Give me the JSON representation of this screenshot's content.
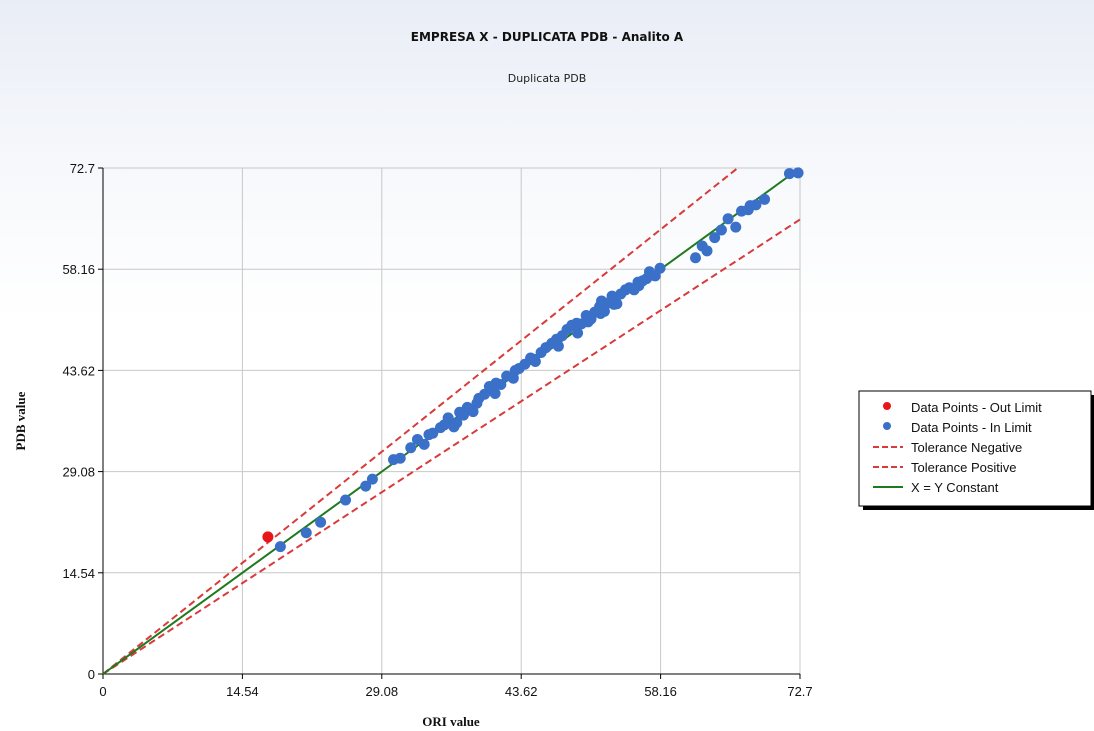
{
  "chart_data": {
    "type": "scatter",
    "title": "EMPRESA X - DUPLICATA PDB - Analito A",
    "subtitle": "Duplicata PDB",
    "xlabel": "ORI value",
    "ylabel": "PDB value",
    "xlim": [
      0,
      72.7
    ],
    "ylim": [
      0,
      72.7
    ],
    "x_ticks": [
      "0",
      "14.54",
      "29.08",
      "43.62",
      "58.16",
      "72.7"
    ],
    "y_ticks": [
      "0",
      "14.54",
      "29.08",
      "43.62",
      "58.16",
      "72.7"
    ],
    "grid": true,
    "legend_position": "right",
    "colors": {
      "out_limit": "#e8161b",
      "in_limit": "#3a70c8",
      "tolerance": "#d93a3a",
      "identity": "#1f7a1f"
    },
    "series": [
      {
        "name": "Data Points - Out Limit",
        "kind": "scatter",
        "color": "#e8161b",
        "points": [
          [
            17.2,
            19.7
          ]
        ]
      },
      {
        "name": "Data Points - In Limit",
        "kind": "scatter",
        "color": "#3a70c8",
        "points": [
          [
            18.5,
            18.3
          ],
          [
            21.2,
            20.3
          ],
          [
            22.7,
            21.8
          ],
          [
            25.3,
            25.0
          ],
          [
            27.4,
            27.0
          ],
          [
            28.1,
            28.0
          ],
          [
            30.3,
            30.8
          ],
          [
            31.0,
            31.0
          ],
          [
            32.1,
            32.5
          ],
          [
            32.8,
            33.7
          ],
          [
            33.5,
            33.0
          ],
          [
            34.4,
            34.6
          ],
          [
            35.2,
            35.4
          ],
          [
            36.0,
            36.8
          ],
          [
            36.6,
            35.5
          ],
          [
            37.2,
            37.6
          ],
          [
            38.0,
            38.3
          ],
          [
            38.6,
            37.7
          ],
          [
            39.2,
            39.6
          ],
          [
            39.8,
            40.2
          ],
          [
            40.3,
            41.3
          ],
          [
            40.9,
            40.3
          ],
          [
            41.5,
            41.6
          ],
          [
            42.1,
            42.8
          ],
          [
            42.8,
            42.5
          ],
          [
            43.4,
            43.9
          ],
          [
            44.0,
            44.5
          ],
          [
            44.6,
            45.4
          ],
          [
            45.1,
            44.9
          ],
          [
            45.7,
            46.2
          ],
          [
            46.2,
            46.9
          ],
          [
            46.8,
            47.5
          ],
          [
            47.3,
            48.1
          ],
          [
            47.9,
            48.6
          ],
          [
            48.4,
            49.5
          ],
          [
            48.9,
            50.1
          ],
          [
            49.5,
            49.0
          ],
          [
            49.9,
            50.3
          ],
          [
            50.4,
            51.5
          ],
          [
            50.9,
            51.0
          ],
          [
            51.3,
            52.0
          ],
          [
            51.8,
            52.8
          ],
          [
            52.3,
            52.1
          ],
          [
            52.7,
            53.3
          ],
          [
            53.1,
            54.3
          ],
          [
            53.6,
            53.2
          ],
          [
            54.0,
            54.6
          ],
          [
            54.5,
            55.2
          ],
          [
            54.9,
            55.5
          ],
          [
            55.4,
            55.2
          ],
          [
            55.8,
            56.3
          ],
          [
            56.3,
            56.5
          ],
          [
            56.7,
            56.8
          ],
          [
            57.2,
            57.3
          ],
          [
            57.6,
            57.2
          ],
          [
            58.1,
            58.3
          ],
          [
            61.8,
            59.8
          ],
          [
            62.5,
            61.5
          ],
          [
            63.0,
            60.8
          ],
          [
            63.8,
            62.7
          ],
          [
            64.5,
            63.8
          ],
          [
            65.2,
            65.4
          ],
          [
            66.0,
            64.2
          ],
          [
            66.6,
            66.5
          ],
          [
            67.3,
            66.7
          ],
          [
            68.1,
            67.4
          ],
          [
            69.0,
            68.2
          ],
          [
            67.5,
            67.3
          ],
          [
            71.6,
            71.9
          ],
          [
            72.5,
            72.0
          ],
          [
            49.4,
            50.4
          ],
          [
            50.6,
            50.6
          ],
          [
            51.9,
            51.8
          ],
          [
            53.3,
            53.1
          ],
          [
            52.0,
            53.6
          ],
          [
            55.9,
            55.8
          ],
          [
            57.0,
            57.8
          ],
          [
            45.0,
            45.2
          ],
          [
            47.5,
            47.1
          ],
          [
            43.0,
            43.6
          ],
          [
            41.0,
            41.8
          ],
          [
            39.0,
            38.9
          ],
          [
            37.6,
            37.2
          ],
          [
            36.9,
            36.1
          ],
          [
            34.0,
            34.4
          ],
          [
            35.6,
            35.8
          ]
        ]
      },
      {
        "name": "Tolerance Negative",
        "kind": "dashed-line",
        "color": "#d93a3a",
        "points": [
          [
            0,
            0
          ],
          [
            72.7,
            65.3
          ]
        ]
      },
      {
        "name": "Tolerance Positive",
        "kind": "dashed-line",
        "color": "#d93a3a",
        "points": [
          [
            0,
            0
          ],
          [
            66.2,
            72.7
          ]
        ]
      },
      {
        "name": "X = Y Constant",
        "kind": "line",
        "color": "#1f7a1f",
        "points": [
          [
            0,
            0
          ],
          [
            72.7,
            72.7
          ]
        ]
      }
    ],
    "legend": [
      {
        "label": "Data Points - Out Limit",
        "symbol": "dot",
        "color": "#e8161b"
      },
      {
        "label": "Data Points - In Limit",
        "symbol": "dot",
        "color": "#3a70c8"
      },
      {
        "label": "Tolerance Negative",
        "symbol": "dash",
        "color": "#d93a3a"
      },
      {
        "label": "Tolerance Positive",
        "symbol": "dash",
        "color": "#d93a3a"
      },
      {
        "label": "X = Y Constant",
        "symbol": "line",
        "color": "#1f7a1f"
      }
    ]
  }
}
